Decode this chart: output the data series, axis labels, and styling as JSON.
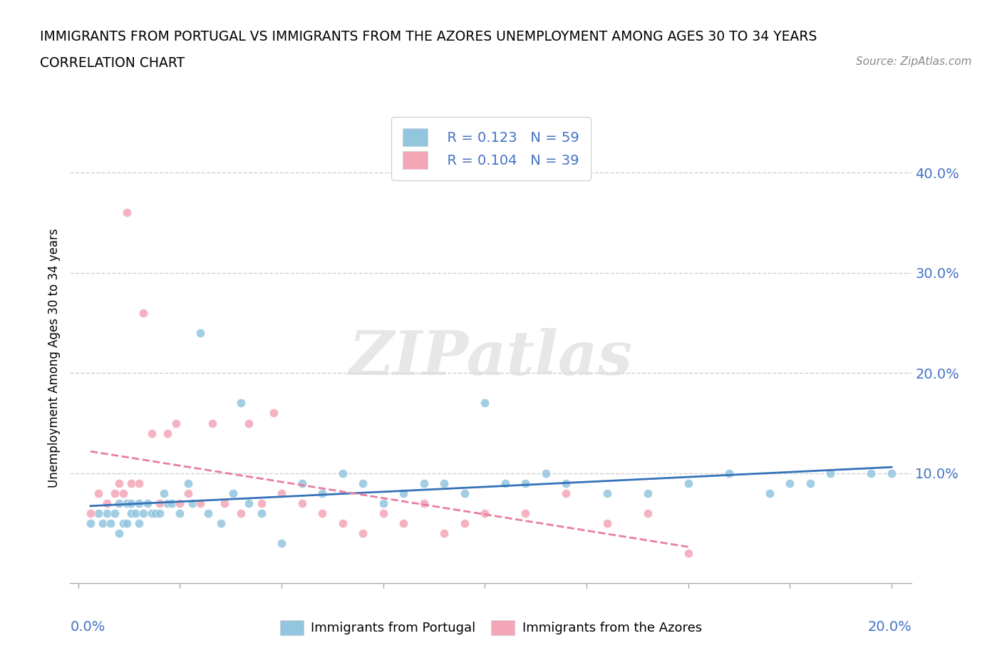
{
  "title_line1": "IMMIGRANTS FROM PORTUGAL VS IMMIGRANTS FROM THE AZORES UNEMPLOYMENT AMONG AGES 30 TO 34 YEARS",
  "title_line2": "CORRELATION CHART",
  "source": "Source: ZipAtlas.com",
  "ylabel": "Unemployment Among Ages 30 to 34 years",
  "yticks_labels": [
    "10.0%",
    "20.0%",
    "30.0%",
    "40.0%"
  ],
  "ytick_vals": [
    0.1,
    0.2,
    0.3,
    0.4
  ],
  "xtick_vals": [
    0.0,
    0.025,
    0.05,
    0.075,
    0.1,
    0.125,
    0.15,
    0.175,
    0.2
  ],
  "xlim": [
    -0.002,
    0.205
  ],
  "ylim": [
    -0.01,
    0.44
  ],
  "legend_R1": "R = 0.123",
  "legend_N1": "N = 59",
  "legend_R2": "R = 0.104",
  "legend_N2": "N = 39",
  "blue_scatter_color": "#92c5de",
  "pink_scatter_color": "#f4a6b8",
  "blue_line_color": "#3572b8",
  "pink_line_color": "#e87fa0",
  "axis_label_color": "#4472c4",
  "text_color": "#333333",
  "grid_color": "#d0d0d0",
  "watermark": "ZIPatlas",
  "portugal_x": [
    0.003,
    0.005,
    0.006,
    0.007,
    0.008,
    0.009,
    0.01,
    0.01,
    0.011,
    0.012,
    0.012,
    0.013,
    0.013,
    0.014,
    0.015,
    0.015,
    0.016,
    0.017,
    0.018,
    0.019,
    0.02,
    0.021,
    0.022,
    0.023,
    0.025,
    0.027,
    0.028,
    0.03,
    0.032,
    0.035,
    0.038,
    0.04,
    0.042,
    0.045,
    0.05,
    0.055,
    0.06,
    0.065,
    0.07,
    0.075,
    0.08,
    0.085,
    0.09,
    0.095,
    0.1,
    0.105,
    0.11,
    0.115,
    0.12,
    0.13,
    0.14,
    0.15,
    0.16,
    0.17,
    0.175,
    0.18,
    0.185,
    0.195,
    0.2
  ],
  "portugal_y": [
    0.05,
    0.06,
    0.05,
    0.06,
    0.05,
    0.06,
    0.04,
    0.07,
    0.05,
    0.05,
    0.07,
    0.06,
    0.07,
    0.06,
    0.05,
    0.07,
    0.06,
    0.07,
    0.06,
    0.06,
    0.06,
    0.08,
    0.07,
    0.07,
    0.06,
    0.09,
    0.07,
    0.24,
    0.06,
    0.05,
    0.08,
    0.17,
    0.07,
    0.06,
    0.03,
    0.09,
    0.08,
    0.1,
    0.09,
    0.07,
    0.08,
    0.09,
    0.09,
    0.08,
    0.17,
    0.09,
    0.09,
    0.1,
    0.09,
    0.08,
    0.08,
    0.09,
    0.1,
    0.08,
    0.09,
    0.09,
    0.1,
    0.1,
    0.1
  ],
  "azores_x": [
    0.003,
    0.005,
    0.007,
    0.009,
    0.01,
    0.011,
    0.012,
    0.013,
    0.015,
    0.016,
    0.018,
    0.02,
    0.022,
    0.024,
    0.025,
    0.027,
    0.03,
    0.033,
    0.036,
    0.04,
    0.042,
    0.045,
    0.048,
    0.05,
    0.055,
    0.06,
    0.065,
    0.07,
    0.075,
    0.08,
    0.085,
    0.09,
    0.095,
    0.1,
    0.11,
    0.12,
    0.13,
    0.14,
    0.15
  ],
  "azores_y": [
    0.06,
    0.08,
    0.07,
    0.08,
    0.09,
    0.08,
    0.36,
    0.09,
    0.09,
    0.26,
    0.14,
    0.07,
    0.14,
    0.15,
    0.07,
    0.08,
    0.07,
    0.15,
    0.07,
    0.06,
    0.15,
    0.07,
    0.16,
    0.08,
    0.07,
    0.06,
    0.05,
    0.04,
    0.06,
    0.05,
    0.07,
    0.04,
    0.05,
    0.06,
    0.06,
    0.08,
    0.05,
    0.06,
    0.02
  ]
}
